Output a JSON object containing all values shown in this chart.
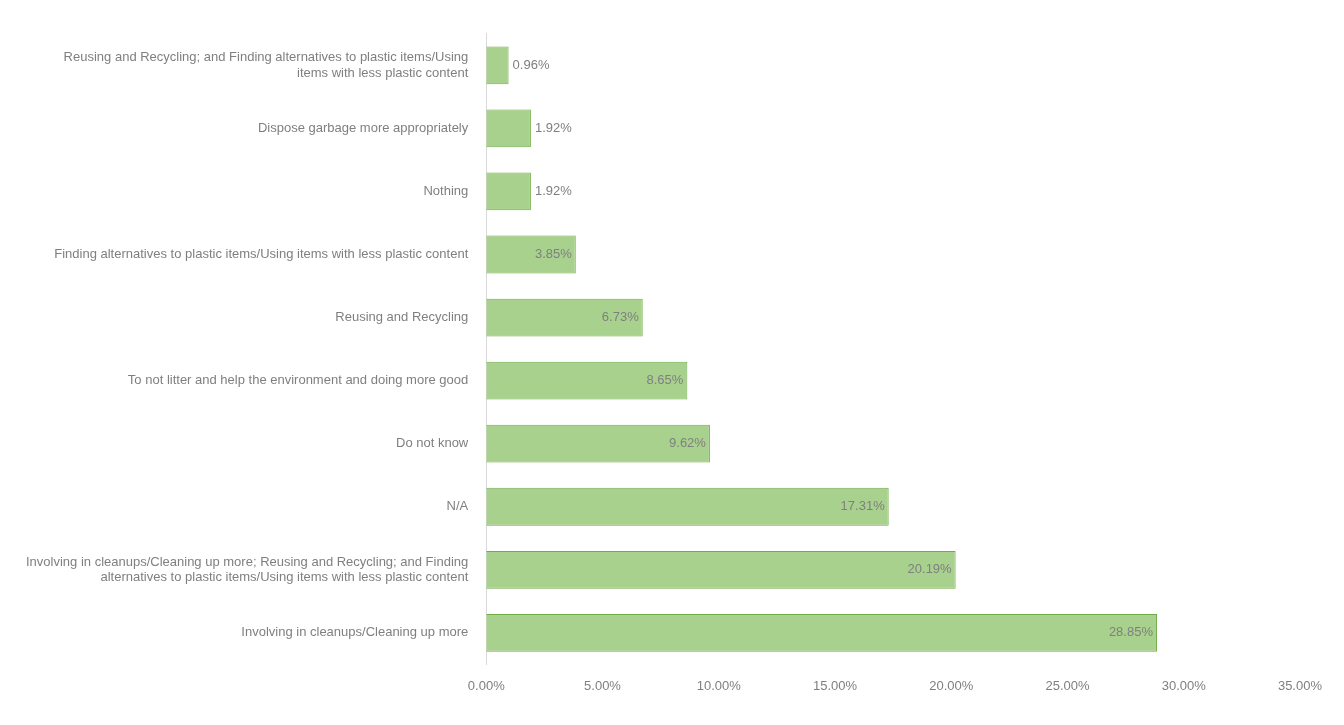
{
  "chart_data": {
    "type": "bar",
    "orientation": "horizontal",
    "categories": [
      "Reusing and Recycling; and Finding alternatives to plastic items/Using items with less plastic content",
      "Dispose garbage more appropriately",
      "Nothing",
      "Finding alternatives to plastic items/Using items with less plastic content",
      "Reusing and Recycling",
      "To not litter and help the environment and doing more good",
      "Do not know",
      "N/A",
      "Involving in cleanups/Cleaning up more; Reusing and Recycling; and Finding alternatives to plastic items/Using items with less plastic content",
      "Involving in cleanups/Cleaning up more"
    ],
    "values": [
      0.96,
      1.92,
      1.92,
      3.85,
      6.73,
      8.65,
      9.62,
      17.31,
      20.19,
      28.85
    ],
    "value_labels": [
      "0.96%",
      "1.92%",
      "1.92%",
      "3.85%",
      "6.73%",
      "8.65%",
      "9.62%",
      "17.31%",
      "20.19%",
      "28.85%"
    ],
    "color": "#a9d18e",
    "xlim": [
      0,
      35
    ],
    "xticks": [
      {
        "value": 0,
        "label": "0.00%"
      },
      {
        "value": 5,
        "label": "5.00%"
      },
      {
        "value": 10,
        "label": "10.00%"
      },
      {
        "value": 15,
        "label": "15.00%"
      },
      {
        "value": 20,
        "label": "20.00%"
      },
      {
        "value": 25,
        "label": "25.00%"
      },
      {
        "value": 30,
        "label": "30.00%"
      },
      {
        "value": 35,
        "label": "35.00%"
      }
    ],
    "grid": false,
    "legend": false
  }
}
